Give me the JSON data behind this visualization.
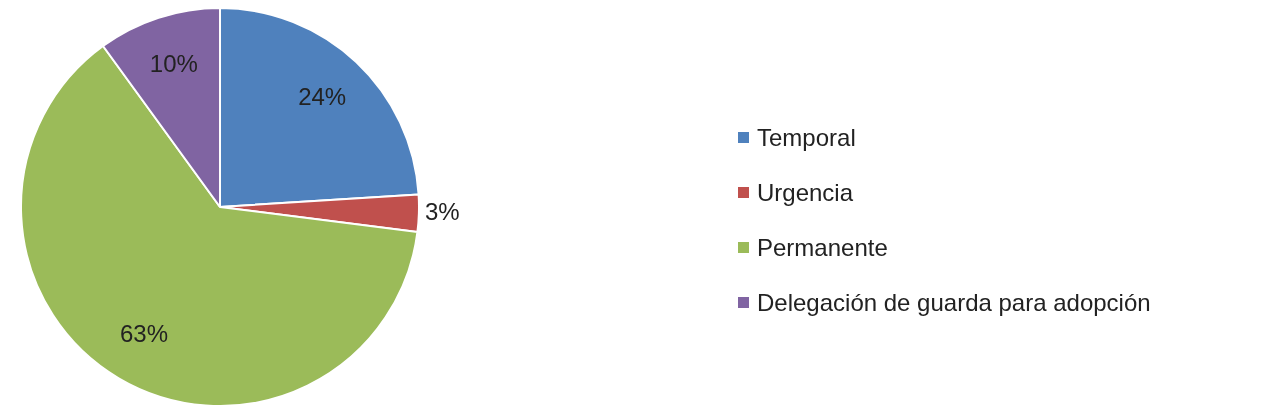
{
  "chart_data": {
    "type": "pie",
    "categories": [
      "Temporal",
      "Urgencia",
      "Permanente",
      "Delegación de guarda para adopción"
    ],
    "values": [
      24,
      3,
      63,
      10
    ],
    "colors": [
      "#4f81bd",
      "#c0504d",
      "#9bbb59",
      "#8064a2"
    ],
    "value_labels": [
      "24%",
      "3%",
      "63%",
      "10%"
    ],
    "legend": "right"
  }
}
